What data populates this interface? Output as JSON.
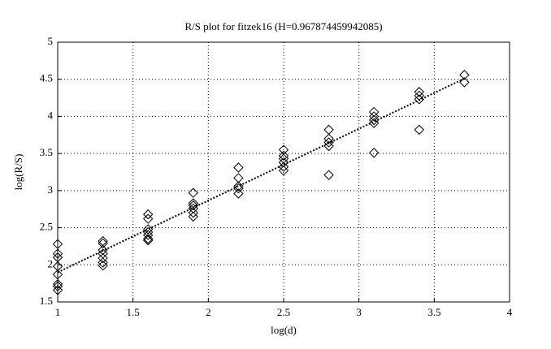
{
  "chart_data": {
    "type": "scatter",
    "title": "R/S plot for fitzek16 (H=0.967874459942085)",
    "xlabel": "log(d)",
    "ylabel": "log(R/S)",
    "x": [
      1,
      1,
      1,
      1,
      1,
      1,
      1,
      1,
      1.3,
      1.3,
      1.3,
      1.3,
      1.3,
      1.3,
      1.3,
      1.6,
      1.6,
      1.6,
      1.6,
      1.6,
      1.6,
      1.6,
      1.9,
      1.9,
      1.9,
      1.9,
      1.9,
      1.9,
      2.2,
      2.2,
      2.2,
      2.2,
      2.2,
      2.5,
      2.5,
      2.5,
      2.5,
      2.5,
      2.5,
      2.8,
      2.8,
      2.8,
      2.8,
      2.8,
      3.1,
      3.1,
      3.1,
      3.1,
      3.1,
      3.4,
      3.4,
      3.4,
      3.4,
      3.7,
      3.7
    ],
    "values": [
      2.28,
      2.15,
      2.1,
      1.98,
      1.87,
      1.74,
      1.71,
      1.66,
      2.32,
      2.29,
      2.2,
      2.15,
      2.09,
      2.03,
      1.99,
      2.68,
      2.62,
      2.48,
      2.44,
      2.4,
      2.35,
      2.33,
      2.97,
      2.83,
      2.8,
      2.76,
      2.7,
      2.65,
      3.31,
      3.17,
      3.06,
      3.03,
      2.96,
      3.55,
      3.47,
      3.43,
      3.38,
      3.32,
      3.27,
      3.82,
      3.7,
      3.65,
      3.6,
      3.21,
      4.06,
      4.0,
      3.95,
      3.91,
      3.51,
      4.33,
      4.28,
      4.23,
      3.82,
      4.56,
      4.46
    ],
    "color": "#000000",
    "fit_line": {
      "x": [
        1,
        3.7
      ],
      "values": [
        1.9,
        4.51
      ]
    },
    "xlim": [
      1,
      4
    ],
    "xticks": [
      1,
      1.5,
      2,
      2.5,
      3,
      3.5,
      4
    ],
    "ylim": [
      1.5,
      5
    ],
    "yticks": [
      1.5,
      2,
      2.5,
      3,
      3.5,
      4,
      4.5,
      5
    ],
    "grid": true
  }
}
